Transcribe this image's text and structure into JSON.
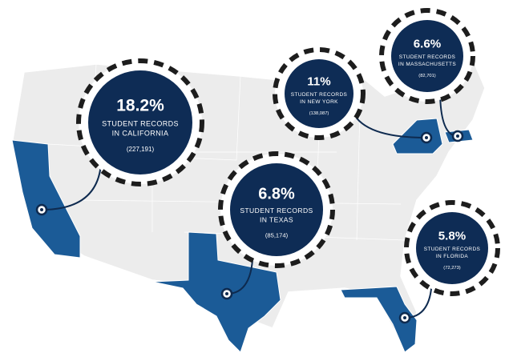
{
  "callouts": [
    {
      "percent": "18.2%",
      "lines": [
        "STUDENT RECORDS",
        "IN CALIFORNIA"
      ],
      "count": "(227,191)"
    },
    {
      "percent": "6.8%",
      "lines": [
        "STUDENT RECORDS",
        "IN TEXAS"
      ],
      "count": "(85,174)"
    },
    {
      "percent": "11%",
      "lines": [
        "STUDENT RECORDS",
        "IN NEW YORK"
      ],
      "count": "(138,087)"
    },
    {
      "percent": "6.6%",
      "lines": [
        "STUDENT RECORDS",
        "IN MASSACHUSETTS"
      ],
      "count": "(82,701)"
    },
    {
      "percent": "5.8%",
      "lines": [
        "STUDENT RECORDS",
        "IN FLORIDA"
      ],
      "count": "(72,273)"
    }
  ]
}
